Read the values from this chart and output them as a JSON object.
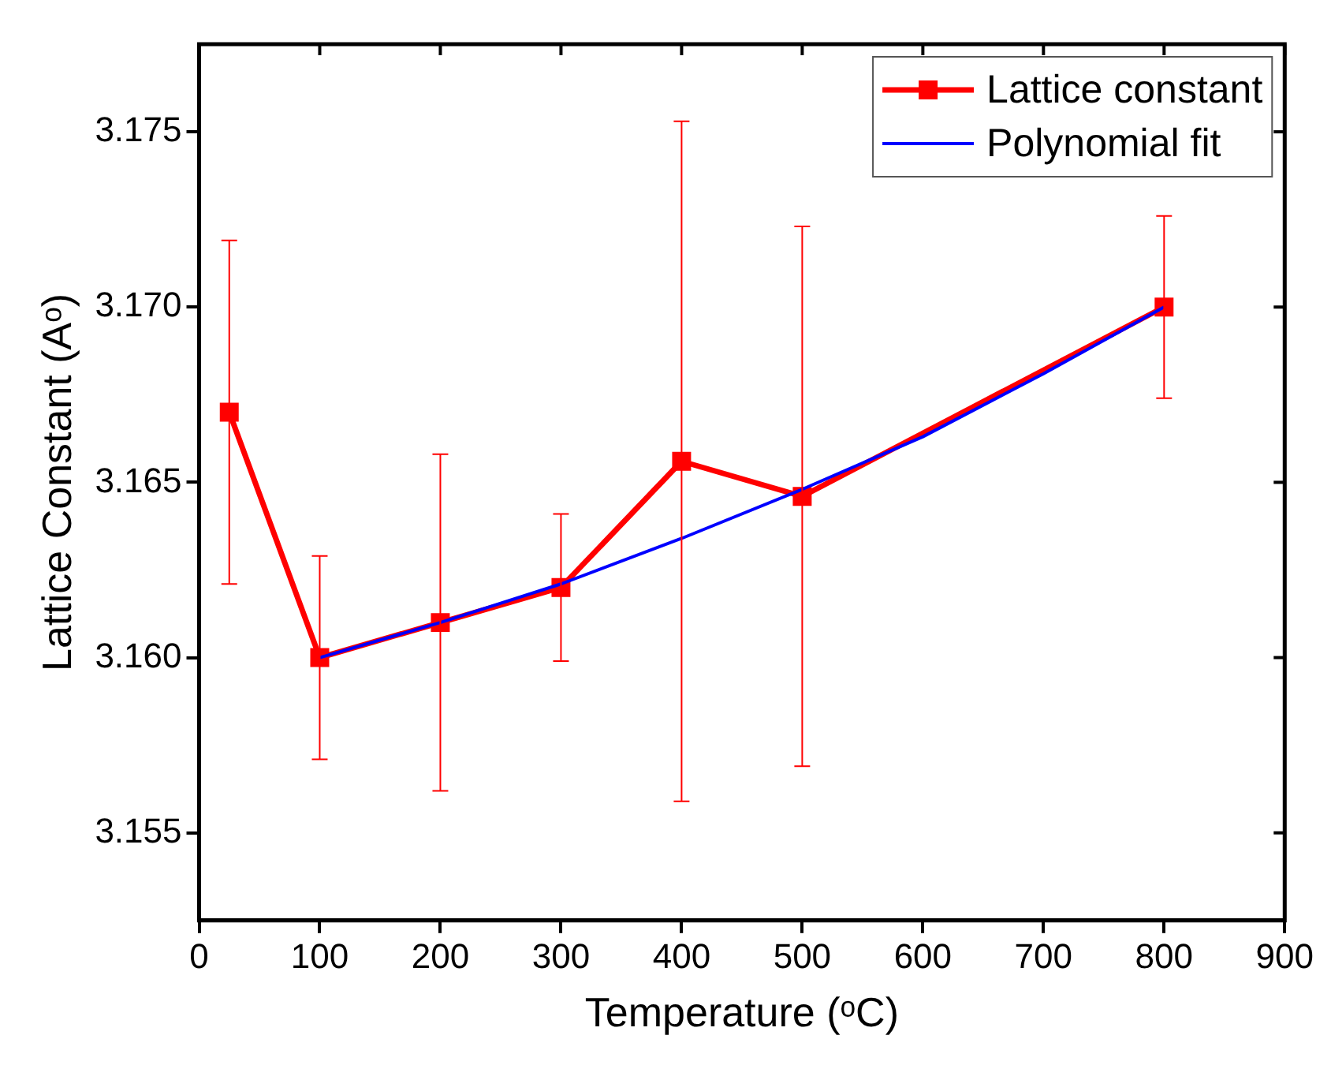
{
  "chart_data": {
    "type": "line",
    "xlabel": "Temperature (ᵒC)",
    "ylabel": "Lattice Constant (Aᵒ)",
    "xlim": [
      0,
      900
    ],
    "xticks": [
      0,
      100,
      200,
      300,
      400,
      500,
      600,
      700,
      800,
      900
    ],
    "ylim": [
      3.1525,
      3.1775
    ],
    "yticks": [
      {
        "value": 3.155,
        "label": "3.155"
      },
      {
        "value": 3.16,
        "label": "3.160"
      },
      {
        "value": 3.165,
        "label": "3.165"
      },
      {
        "value": 3.17,
        "label": "3.170"
      },
      {
        "value": 3.175,
        "label": "3.175"
      }
    ],
    "grid": false,
    "legend": "top right",
    "marker": "square",
    "line_style": "solid",
    "series": [
      {
        "name": "Lattice constant",
        "color": "#ff0000",
        "x": [
          25,
          100,
          200,
          300,
          400,
          500,
          800
        ],
        "values": [
          3.167,
          3.16,
          3.161,
          3.162,
          3.1656,
          3.1646,
          3.17
        ],
        "errors": [
          0.0049,
          0.0029,
          0.0048,
          0.0021,
          0.0097,
          0.0077,
          0.0026
        ]
      },
      {
        "name": "Polynomial fit",
        "color": "#0000ff",
        "marker": "none",
        "x": [
          100,
          200,
          300,
          400,
          500,
          600,
          700,
          800
        ],
        "values": [
          3.16,
          3.161,
          3.1621,
          3.1634,
          3.1648,
          3.1663,
          3.1681,
          3.17
        ]
      }
    ]
  }
}
